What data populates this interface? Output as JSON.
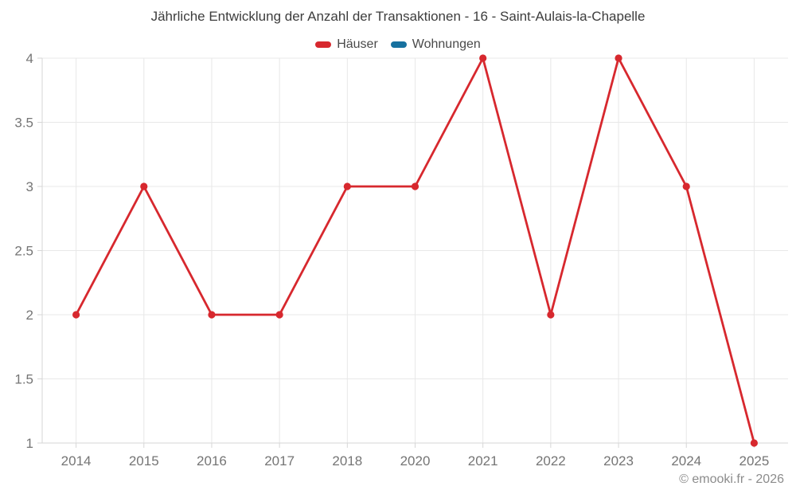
{
  "chart_data": {
    "type": "line",
    "title": "Jährliche Entwicklung der Anzahl der Transaktionen - 16 - Saint-Aulais-la-Chapelle",
    "categories": [
      "2014",
      "2015",
      "2016",
      "2017",
      "2018",
      "2020",
      "2021",
      "2022",
      "2023",
      "2024",
      "2025"
    ],
    "series": [
      {
        "name": "Häuser",
        "color": "#d7282e",
        "values": [
          2,
          3,
          2,
          2,
          3,
          3,
          4,
          2,
          4,
          3,
          1
        ]
      },
      {
        "name": "Wohnungen",
        "color": "#17719f",
        "values": [
          null,
          null,
          null,
          null,
          null,
          null,
          null,
          null,
          null,
          null,
          null
        ]
      }
    ],
    "xlabel": "",
    "ylabel": "",
    "ylim": [
      1,
      4
    ],
    "yticks": [
      1,
      1.5,
      2,
      2.5,
      3,
      3.5,
      4
    ],
    "grid": true,
    "legend_position": "top-center",
    "grid_color": "#e8e8e8",
    "axis_color": "#d6d6d6",
    "tick_label_color": "#757575",
    "marker_radius": 4.6,
    "line_width": 2.8
  },
  "footer": {
    "copyright": "© emooki.fr - 2026"
  }
}
